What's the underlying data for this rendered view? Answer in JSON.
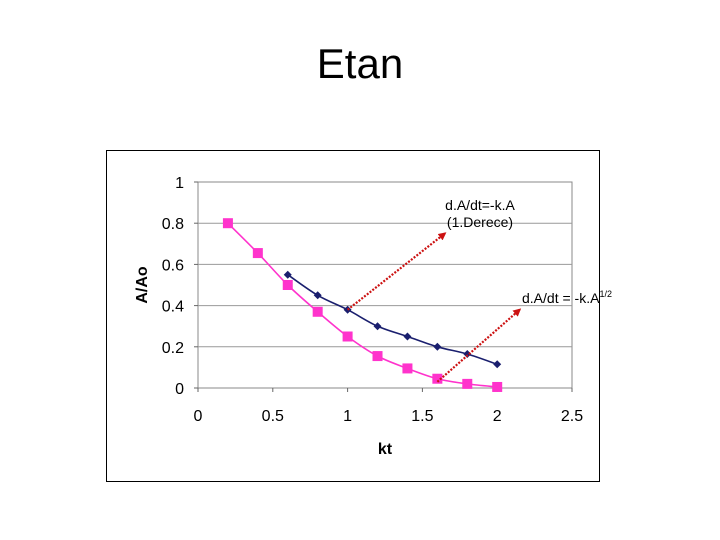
{
  "slide": {
    "title": "Etan"
  },
  "chart_data": {
    "type": "line",
    "title": "",
    "xlabel": "kt",
    "ylabel": "A/Ao",
    "xlim": [
      0,
      2.5
    ],
    "ylim": [
      0,
      1
    ],
    "x_ticks": [
      "0",
      "0.5",
      "1",
      "1.5",
      "2",
      "2.5"
    ],
    "x_tick_values": [
      0,
      0.5,
      1,
      1.5,
      2,
      2.5
    ],
    "y_ticks": [
      "0",
      "0.2",
      "0.4",
      "0.6",
      "0.8",
      "1"
    ],
    "y_tick_values": [
      0,
      0.2,
      0.4,
      0.6,
      0.8,
      1
    ],
    "grid": "horizontal",
    "plot_background": "#ffffff",
    "series": [
      {
        "marker": "diamond",
        "color": "#1a1f6e",
        "x": [
          0.6,
          0.8,
          1.0,
          1.2,
          1.4,
          1.6,
          1.8,
          2.0
        ],
        "y": [
          0.55,
          0.45,
          0.38,
          0.3,
          0.25,
          0.2,
          0.165,
          0.115
        ]
      },
      {
        "marker": "square",
        "color": "#ff33cc",
        "x": [
          0.2,
          0.4,
          0.6,
          0.8,
          1.0,
          1.2,
          1.4,
          1.6,
          1.8,
          2.0
        ],
        "y": [
          0.8,
          0.655,
          0.5,
          0.37,
          0.25,
          0.155,
          0.095,
          0.045,
          0.02,
          0.005
        ]
      }
    ],
    "annotations": [
      {
        "line1": "d.A/dt=-k.A",
        "line2": "(1.Derece)",
        "arrow_from": [
          1.0,
          0.38
        ],
        "arrow_to": [
          1.65,
          0.75
        ],
        "color": "#cc1111"
      },
      {
        "text": "d.A/dt = -k.A",
        "superscript": "1/2",
        "arrow_from": [
          1.6,
          0.03
        ],
        "arrow_to": [
          2.15,
          0.38
        ],
        "color": "#cc1111"
      }
    ]
  }
}
